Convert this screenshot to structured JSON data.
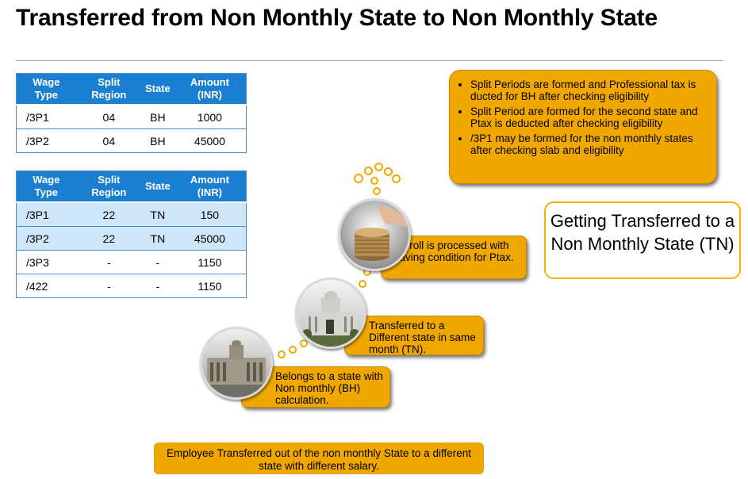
{
  "title": "Transferred from Non Monthly State to Non Monthly State",
  "table1": {
    "headers": [
      "Wage Type",
      "Split Region",
      "State",
      "Amount (INR)"
    ],
    "rows": [
      [
        "/3P1",
        "04",
        "BH",
        "1000"
      ],
      [
        "/3P2",
        "04",
        "BH",
        "45000"
      ]
    ]
  },
  "table2": {
    "headers": [
      "Wage Type",
      "Split Region",
      "State",
      "Amount (INR)"
    ],
    "rows": [
      [
        "/3P1",
        "22",
        "TN",
        "150"
      ],
      [
        "/3P2",
        "22",
        "TN",
        "45000"
      ],
      [
        "/3P3",
        "-",
        "-",
        "1150"
      ],
      [
        "/422",
        "-",
        "-",
        "1150"
      ]
    ]
  },
  "notes": [
    "Split Periods are formed  and Professional tax is ducted for BH after checking eligibility",
    "Split Period are formed for the second state and Ptax is deducted after checking eligibility",
    "/3P1 may be formed for the non monthly states after checking slab and eligibility"
  ],
  "callout": "Getting Transferred to a Non Monthly State (TN)",
  "steps": {
    "payroll": "Payroll is processed with leaving condition for Ptax.",
    "transferred": "Transferred to a Different state in same month (TN).",
    "belongs": "Belongs to a state with Non monthly (BH) calculation."
  },
  "bottom_note": "Employee  Transferred  out of the non monthly State to a different state with different salary.",
  "colors": {
    "header_blue": "#1a7fd0",
    "highlight_row": "#cfe5f8",
    "gold": "#f0a800"
  }
}
